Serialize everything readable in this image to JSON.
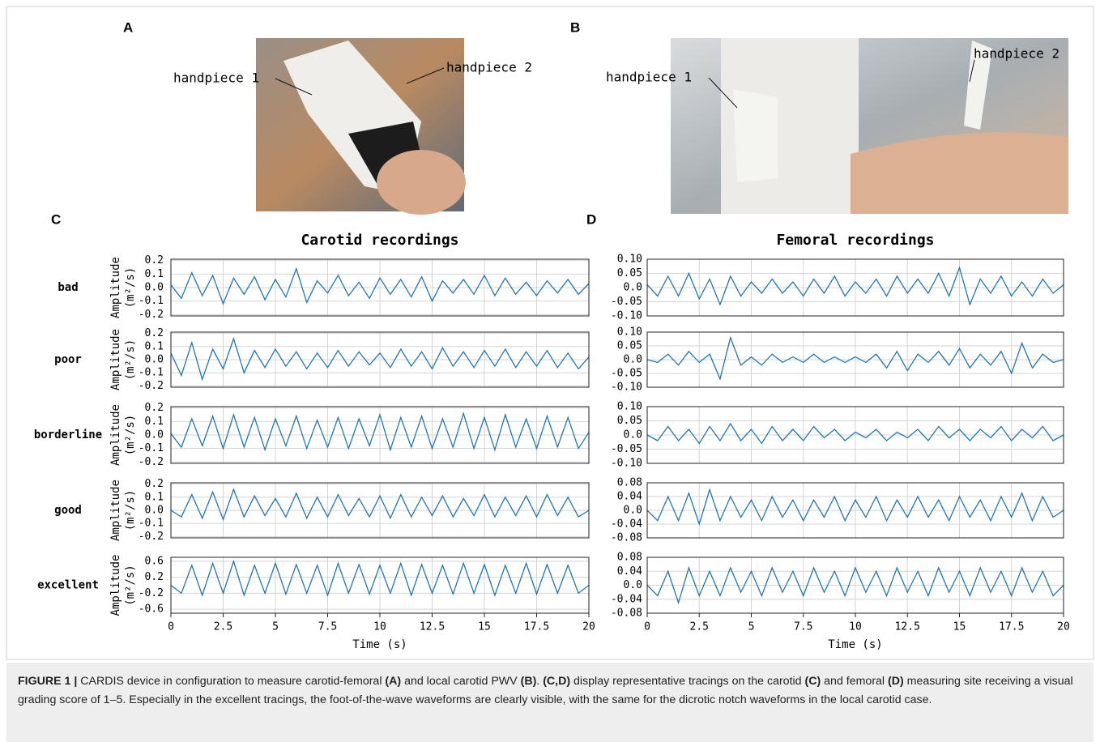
{
  "figure": {
    "panel_labels": [
      "A",
      "B",
      "C",
      "D"
    ],
    "photo_a_labels": [
      "handpiece 1",
      "handpiece 2"
    ],
    "photo_b_labels": [
      "handpiece 1",
      "handpiece 2"
    ],
    "row_labels": [
      "bad",
      "poor",
      "borderline",
      "good",
      "excellent"
    ],
    "caption": [
      {
        "text": "FIGURE 1 |",
        "bold": true
      },
      {
        "text": " CARDIS device in configuration to measure carotid-femoral ",
        "bold": false
      },
      {
        "text": "(A)",
        "bold": true
      },
      {
        "text": " and local carotid PWV ",
        "bold": false
      },
      {
        "text": "(B)",
        "bold": true
      },
      {
        "text": ". ",
        "bold": false
      },
      {
        "text": "(C,D)",
        "bold": true
      },
      {
        "text": " display representative tracings on the carotid ",
        "bold": false
      },
      {
        "text": "(C)",
        "bold": true
      },
      {
        "text": " and femoral ",
        "bold": false
      },
      {
        "text": "(D)",
        "bold": true
      },
      {
        "text": " measuring site receiving a visual grading score of 1–5. Especially in the excellent tracings, the foot-of-the-wave waveforms are clearly visible, with the same for the dicrotic notch waveforms in the local carotid case.",
        "bold": false
      }
    ]
  },
  "chart_data": [
    {
      "type": "line",
      "title": "Carotid recordings",
      "xlabel": "Time (s)",
      "ylabel": [
        "Amplitude",
        "(m²/s)"
      ],
      "color": "#1f77b4",
      "grid": true,
      "x": [
        0,
        0.5,
        1,
        1.5,
        2,
        2.5,
        3,
        3.5,
        4,
        4.5,
        5,
        5.5,
        6,
        6.5,
        7,
        7.5,
        8,
        8.5,
        9,
        9.5,
        10,
        10.5,
        11,
        11.5,
        12,
        12.5,
        13,
        13.5,
        14,
        14.5,
        15,
        15.5,
        16,
        16.5,
        17,
        17.5,
        18,
        18.5,
        19,
        19.5,
        20
      ],
      "xlim": [
        0,
        20
      ],
      "xticks": [
        0,
        2.5,
        5,
        7.5,
        10,
        12.5,
        15,
        17.5,
        20
      ],
      "panels": [
        {
          "ylim": [
            -0.21,
            0.21
          ],
          "yticks": [
            0.2,
            0.1,
            {
              "value": 0,
              "label": "0.0"
            },
            -0.1,
            -0.2
          ],
          "values": [
            0.02,
            -0.08,
            0.11,
            -0.06,
            0.09,
            -0.12,
            0.07,
            -0.05,
            0.08,
            -0.09,
            0.06,
            -0.07,
            0.14,
            -0.11,
            0.05,
            -0.04,
            0.09,
            -0.06,
            0.04,
            -0.08,
            0.07,
            -0.05,
            0.06,
            -0.07,
            0.08,
            -0.1,
            0.05,
            -0.04,
            0.06,
            -0.05,
            0.09,
            -0.06,
            0.07,
            -0.05,
            0.04,
            -0.06,
            0.05,
            -0.04,
            0.06,
            -0.05,
            0.03
          ]
        },
        {
          "ylim": [
            -0.21,
            0.21
          ],
          "yticks": [
            0.2,
            0.1,
            {
              "value": 0,
              "label": "0.0"
            },
            -0.1,
            -0.2
          ],
          "values": [
            0.05,
            -0.12,
            0.13,
            -0.15,
            0.08,
            -0.07,
            0.16,
            -0.1,
            0.07,
            -0.06,
            0.08,
            -0.05,
            0.06,
            -0.07,
            0.05,
            -0.06,
            0.07,
            -0.05,
            0.06,
            -0.04,
            0.05,
            -0.06,
            0.08,
            -0.05,
            0.06,
            -0.07,
            0.09,
            -0.05,
            0.06,
            -0.06,
            0.07,
            -0.05,
            0.08,
            -0.06,
            0.06,
            -0.05,
            0.07,
            -0.06,
            0.05,
            -0.07,
            0.02
          ]
        },
        {
          "ylim": [
            -0.21,
            0.21
          ],
          "yticks": [
            0.2,
            0.1,
            {
              "value": 0,
              "label": "0.0"
            },
            -0.1,
            -0.2
          ],
          "values": [
            0.01,
            -0.09,
            0.12,
            -0.08,
            0.14,
            -0.1,
            0.15,
            -0.09,
            0.13,
            -0.11,
            0.12,
            -0.08,
            0.14,
            -0.1,
            0.11,
            -0.09,
            0.13,
            -0.1,
            0.12,
            -0.08,
            0.15,
            -0.11,
            0.13,
            -0.09,
            0.14,
            -0.1,
            0.12,
            -0.09,
            0.16,
            -0.1,
            0.13,
            -0.11,
            0.15,
            -0.09,
            0.12,
            -0.1,
            0.14,
            -0.09,
            0.13,
            -0.1,
            0.02
          ]
        },
        {
          "ylim": [
            -0.21,
            0.21
          ],
          "yticks": [
            0.2,
            0.1,
            {
              "value": 0,
              "label": "0.0"
            },
            -0.1,
            -0.2
          ],
          "values": [
            0.0,
            -0.05,
            0.12,
            -0.06,
            0.14,
            -0.07,
            0.16,
            -0.05,
            0.11,
            -0.04,
            0.09,
            -0.05,
            0.13,
            -0.06,
            0.1,
            -0.05,
            0.12,
            -0.04,
            0.09,
            -0.05,
            0.11,
            -0.06,
            0.12,
            -0.05,
            0.1,
            -0.04,
            0.11,
            -0.05,
            0.09,
            -0.04,
            0.12,
            -0.05,
            0.1,
            -0.04,
            0.11,
            -0.05,
            0.12,
            -0.04,
            0.1,
            -0.05,
            0.0
          ]
        },
        {
          "ylim": [
            -0.7,
            0.7
          ],
          "yticks": [
            0.6,
            0.2,
            -0.2,
            -0.6
          ],
          "values": [
            0.0,
            -0.2,
            0.5,
            -0.25,
            0.55,
            -0.2,
            0.6,
            -0.25,
            0.5,
            -0.2,
            0.55,
            -0.22,
            0.52,
            -0.2,
            0.5,
            -0.25,
            0.55,
            -0.2,
            0.52,
            -0.22,
            0.5,
            -0.2,
            0.55,
            -0.25,
            0.52,
            -0.2,
            0.5,
            -0.22,
            0.55,
            -0.2,
            0.52,
            -0.25,
            0.5,
            -0.2,
            0.55,
            -0.22,
            0.52,
            -0.2,
            0.5,
            -0.2,
            0.0
          ]
        }
      ]
    },
    {
      "type": "line",
      "title": "Femoral recordings",
      "xlabel": "Time (s)",
      "color": "#1f77b4",
      "grid": true,
      "x": [
        0,
        0.5,
        1,
        1.5,
        2,
        2.5,
        3,
        3.5,
        4,
        4.5,
        5,
        5.5,
        6,
        6.5,
        7,
        7.5,
        8,
        8.5,
        9,
        9.5,
        10,
        10.5,
        11,
        11.5,
        12,
        12.5,
        13,
        13.5,
        14,
        14.5,
        15,
        15.5,
        16,
        16.5,
        17,
        17.5,
        18,
        18.5,
        19,
        19.5,
        20
      ],
      "xlim": [
        0,
        20
      ],
      "xticks": [
        0,
        2.5,
        5,
        7.5,
        10,
        12.5,
        15,
        17.5,
        20
      ],
      "panels": [
        {
          "ylim": [
            -0.1,
            0.1
          ],
          "yticks": [
            {
              "value": 0.1,
              "label": "0.10"
            },
            0.05,
            {
              "value": 0,
              "label": "0.0"
            },
            -0.05,
            {
              "value": -0.1,
              "label": "-0.10"
            }
          ],
          "values": [
            0.01,
            -0.03,
            0.04,
            -0.03,
            0.05,
            -0.04,
            0.03,
            -0.06,
            0.04,
            -0.03,
            0.02,
            -0.02,
            0.03,
            -0.02,
            0.02,
            -0.03,
            0.03,
            -0.02,
            0.04,
            -0.03,
            0.02,
            -0.02,
            0.03,
            -0.03,
            0.04,
            -0.02,
            0.03,
            -0.02,
            0.05,
            -0.03,
            0.07,
            -0.06,
            0.03,
            -0.02,
            0.04,
            -0.03,
            0.02,
            -0.03,
            0.03,
            -0.02,
            0.01
          ]
        },
        {
          "ylim": [
            -0.1,
            0.1
          ],
          "yticks": [
            {
              "value": 0.1,
              "label": "0.10"
            },
            0.05,
            {
              "value": 0,
              "label": "0.0"
            },
            -0.05,
            {
              "value": -0.1,
              "label": "-0.10"
            }
          ],
          "values": [
            0.0,
            -0.01,
            0.02,
            -0.02,
            0.03,
            -0.01,
            0.02,
            -0.07,
            0.08,
            -0.02,
            0.01,
            -0.02,
            0.02,
            -0.01,
            0.01,
            -0.01,
            0.02,
            -0.01,
            0.01,
            -0.01,
            0.01,
            -0.01,
            0.02,
            -0.03,
            0.03,
            -0.04,
            0.02,
            -0.01,
            0.03,
            -0.02,
            0.04,
            -0.03,
            0.02,
            -0.02,
            0.03,
            -0.05,
            0.06,
            -0.03,
            0.02,
            -0.01,
            0.0
          ]
        },
        {
          "ylim": [
            -0.1,
            0.1
          ],
          "yticks": [
            {
              "value": 0.1,
              "label": "0.10"
            },
            0.05,
            {
              "value": 0,
              "label": "0.0"
            },
            -0.05,
            {
              "value": -0.1,
              "label": "-0.10"
            }
          ],
          "values": [
            0.0,
            -0.02,
            0.03,
            -0.02,
            0.02,
            -0.03,
            0.03,
            -0.02,
            0.04,
            -0.02,
            0.02,
            -0.03,
            0.03,
            -0.02,
            0.02,
            -0.02,
            0.03,
            -0.01,
            0.02,
            -0.02,
            0.01,
            -0.01,
            0.02,
            -0.02,
            0.01,
            -0.01,
            0.02,
            -0.02,
            0.03,
            -0.01,
            0.02,
            -0.02,
            0.02,
            -0.01,
            0.03,
            -0.02,
            0.02,
            -0.01,
            0.03,
            -0.02,
            0.0
          ]
        },
        {
          "ylim": [
            -0.08,
            0.08
          ],
          "yticks": [
            0.08,
            0.04,
            {
              "value": 0,
              "label": "0.0"
            },
            -0.04,
            -0.08
          ],
          "values": [
            0.0,
            -0.03,
            0.04,
            -0.03,
            0.05,
            -0.04,
            0.06,
            -0.03,
            0.04,
            -0.02,
            0.03,
            -0.03,
            0.04,
            -0.02,
            0.03,
            -0.03,
            0.03,
            -0.02,
            0.04,
            -0.03,
            0.03,
            -0.02,
            0.04,
            -0.03,
            0.03,
            -0.02,
            0.04,
            -0.02,
            0.03,
            -0.03,
            0.04,
            -0.02,
            0.03,
            -0.03,
            0.04,
            -0.02,
            0.05,
            -0.03,
            0.04,
            -0.02,
            0.0
          ]
        },
        {
          "ylim": [
            -0.08,
            0.08
          ],
          "yticks": [
            0.08,
            0.04,
            {
              "value": 0,
              "label": "0.0"
            },
            -0.04,
            -0.08
          ],
          "values": [
            0.0,
            -0.03,
            0.04,
            -0.05,
            0.05,
            -0.03,
            0.04,
            -0.03,
            0.05,
            -0.02,
            0.04,
            -0.03,
            0.05,
            -0.02,
            0.04,
            -0.03,
            0.05,
            -0.02,
            0.04,
            -0.03,
            0.05,
            -0.02,
            0.04,
            -0.03,
            0.05,
            -0.02,
            0.04,
            -0.03,
            0.05,
            -0.02,
            0.04,
            -0.03,
            0.05,
            -0.02,
            0.04,
            -0.03,
            0.05,
            -0.02,
            0.04,
            -0.03,
            0.0
          ]
        }
      ]
    }
  ]
}
